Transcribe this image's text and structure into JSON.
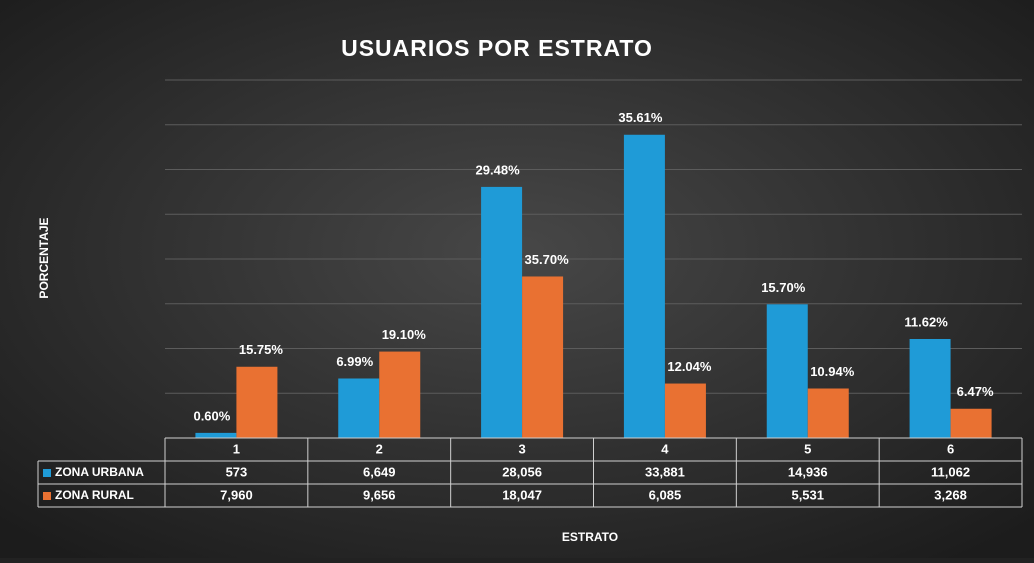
{
  "chart_data": {
    "type": "bar",
    "title": "USUARIOS POR ESTRATO",
    "y_label": "PORCENTAJE",
    "x_label": "ESTRATO",
    "categories": [
      "1",
      "2",
      "3",
      "4",
      "5",
      "6"
    ],
    "series": [
      {
        "name": "ZONA URBANA",
        "color": "#1f9bd7",
        "values": [
          573,
          6649,
          28056,
          33881,
          14936,
          11062
        ],
        "value_labels": [
          "573",
          "6,649",
          "28,056",
          "33,881",
          "14,936",
          "11,062"
        ],
        "percent_labels": [
          "0.60%",
          "6.99%",
          "29.48%",
          "35.61%",
          "15.70%",
          "11.62%"
        ]
      },
      {
        "name": "ZONA RURAL",
        "color": "#e97132",
        "values": [
          7960,
          9656,
          18047,
          6085,
          5531,
          3268
        ],
        "value_labels": [
          "7,960",
          "9,656",
          "18,047",
          "6,085",
          "5,531",
          "3,268"
        ],
        "percent_labels": [
          "15.75%",
          "19.10%",
          "35.70%",
          "12.04%",
          "10.94%",
          "6.47%"
        ]
      }
    ],
    "ylim": [
      0,
      40000
    ],
    "yticks": [
      0,
      5000,
      10000,
      15000,
      20000,
      25000,
      30000,
      35000,
      40000
    ],
    "grid": true
  }
}
